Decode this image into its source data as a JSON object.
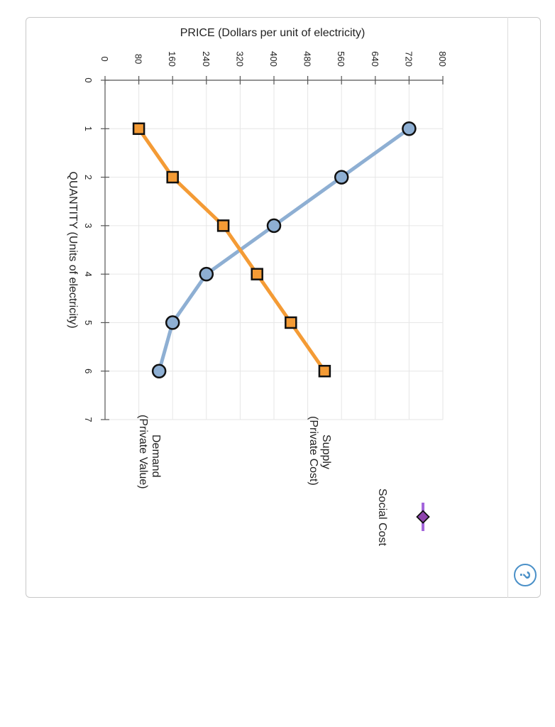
{
  "chart_data": {
    "type": "line",
    "title": "",
    "xlabel": "QUANTITY (Units of electricity)",
    "ylabel": "PRICE (Dollars per unit of electricity)",
    "xlim": [
      0,
      7
    ],
    "ylim": [
      0,
      800
    ],
    "x_ticks": [
      0,
      1,
      2,
      3,
      4,
      5,
      6,
      7
    ],
    "y_ticks": [
      0,
      80,
      160,
      240,
      320,
      400,
      480,
      560,
      640,
      720,
      800
    ],
    "grid": true,
    "orientation": "rotated 90 degrees clockwise",
    "series": [
      {
        "name": "Demand (Private Value)",
        "label_line1": "Demand",
        "label_line2": "(Private Value)",
        "marker": "circle",
        "color": "#8eafd3",
        "x": [
          1,
          2,
          3,
          4,
          5,
          6
        ],
        "y": [
          720,
          560,
          400,
          240,
          160,
          128
        ]
      },
      {
        "name": "Supply (Private Cost)",
        "label_line1": "Supply",
        "label_line2": "(Private Cost)",
        "marker": "square",
        "color": "#f49b35",
        "x": [
          1,
          2,
          3,
          4,
          5,
          6
        ],
        "y": [
          80,
          160,
          280,
          360,
          440,
          520
        ]
      }
    ],
    "legend": [
      {
        "label": "Social Cost",
        "marker": "diamond",
        "color": "#9b59d0",
        "fill": "#8e44ad"
      }
    ]
  },
  "help_icon": "?"
}
